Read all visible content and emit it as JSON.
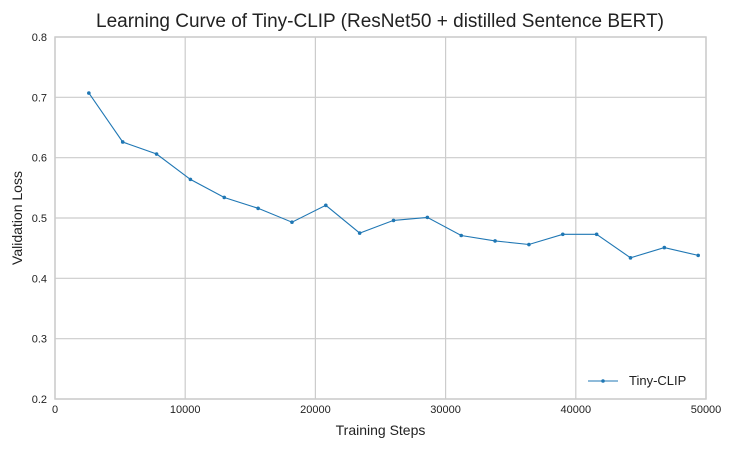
{
  "chart_data": {
    "type": "line",
    "title": "Learning Curve of Tiny-CLIP (ResNet50 + distilled Sentence BERT)",
    "xlabel": "Training Steps",
    "ylabel": "Validation Loss",
    "xlim": [
      0,
      50000
    ],
    "ylim": [
      0.2,
      0.8
    ],
    "xticks": [
      0,
      10000,
      20000,
      30000,
      40000,
      50000
    ],
    "xtick_labels": [
      "0",
      "10000",
      "20000",
      "30000",
      "40000",
      "50000"
    ],
    "yticks": [
      0.2,
      0.3,
      0.4,
      0.5,
      0.6,
      0.7,
      0.8
    ],
    "ytick_labels": [
      "0.2",
      "0.3",
      "0.4",
      "0.5",
      "0.6",
      "0.7",
      "0.8"
    ],
    "grid": true,
    "legend_position": "lower-right",
    "series": [
      {
        "name": "Tiny-CLIP",
        "color": "#1f77b4",
        "marker": "point",
        "x": [
          2600,
          5200,
          7800,
          10400,
          13000,
          15600,
          18200,
          20800,
          23400,
          26000,
          28600,
          31200,
          33800,
          36400,
          39000,
          41600,
          44200,
          46800,
          49400
        ],
        "y": [
          0.707,
          0.626,
          0.606,
          0.564,
          0.534,
          0.516,
          0.493,
          0.521,
          0.475,
          0.496,
          0.501,
          0.471,
          0.462,
          0.456,
          0.473,
          0.473,
          0.434,
          0.451,
          0.438
        ]
      }
    ]
  }
}
